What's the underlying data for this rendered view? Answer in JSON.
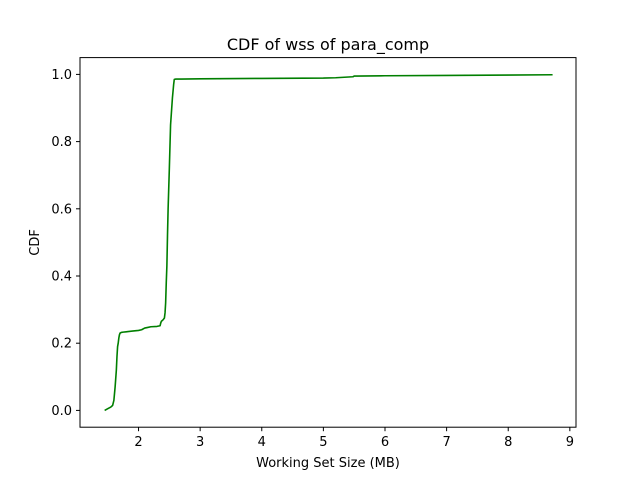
{
  "chart_data": {
    "type": "line",
    "title": "CDF of wss of para_comp",
    "xlabel": "Working Set Size (MB)",
    "ylabel": "CDF",
    "xlim": [
      1.05,
      9.1
    ],
    "ylim": [
      -0.05,
      1.05
    ],
    "xticks": [
      2,
      3,
      4,
      5,
      6,
      7,
      8,
      9
    ],
    "yticks": [
      0.0,
      0.2,
      0.4,
      0.6,
      0.8,
      1.0
    ],
    "xtick_labels": [
      "2",
      "3",
      "4",
      "5",
      "6",
      "7",
      "8",
      "9"
    ],
    "ytick_labels": [
      "0.0",
      "0.2",
      "0.4",
      "0.6",
      "0.8",
      "1.0"
    ],
    "grid": false,
    "colors": {
      "line": "#007f00",
      "axes": "#000000"
    },
    "series": [
      {
        "x": [
          1.45,
          1.5,
          1.55,
          1.58,
          1.6,
          1.62,
          1.64,
          1.65,
          1.66,
          1.67,
          1.68,
          1.69,
          1.7,
          1.72,
          1.75,
          1.8,
          1.9,
          2.0,
          2.05,
          2.1,
          2.15,
          2.2,
          2.3,
          2.35,
          2.36,
          2.37,
          2.4,
          2.42,
          2.43,
          2.44,
          2.45,
          2.46,
          2.47,
          2.48,
          2.5,
          2.52,
          2.55,
          2.56,
          2.57,
          2.58,
          2.6,
          2.7,
          3.0,
          4.0,
          5.0,
          5.2,
          5.48,
          5.5,
          5.55,
          6.0,
          7.0,
          8.0,
          8.72
        ],
        "y": [
          0.0,
          0.005,
          0.01,
          0.015,
          0.03,
          0.07,
          0.12,
          0.16,
          0.19,
          0.2,
          0.215,
          0.225,
          0.23,
          0.232,
          0.233,
          0.234,
          0.236,
          0.238,
          0.24,
          0.245,
          0.247,
          0.249,
          0.25,
          0.252,
          0.26,
          0.265,
          0.27,
          0.275,
          0.29,
          0.32,
          0.38,
          0.43,
          0.52,
          0.6,
          0.72,
          0.85,
          0.93,
          0.95,
          0.97,
          0.985,
          0.986,
          0.986,
          0.987,
          0.988,
          0.989,
          0.99,
          0.993,
          0.995,
          0.995,
          0.996,
          0.997,
          0.998,
          0.999
        ]
      }
    ]
  }
}
